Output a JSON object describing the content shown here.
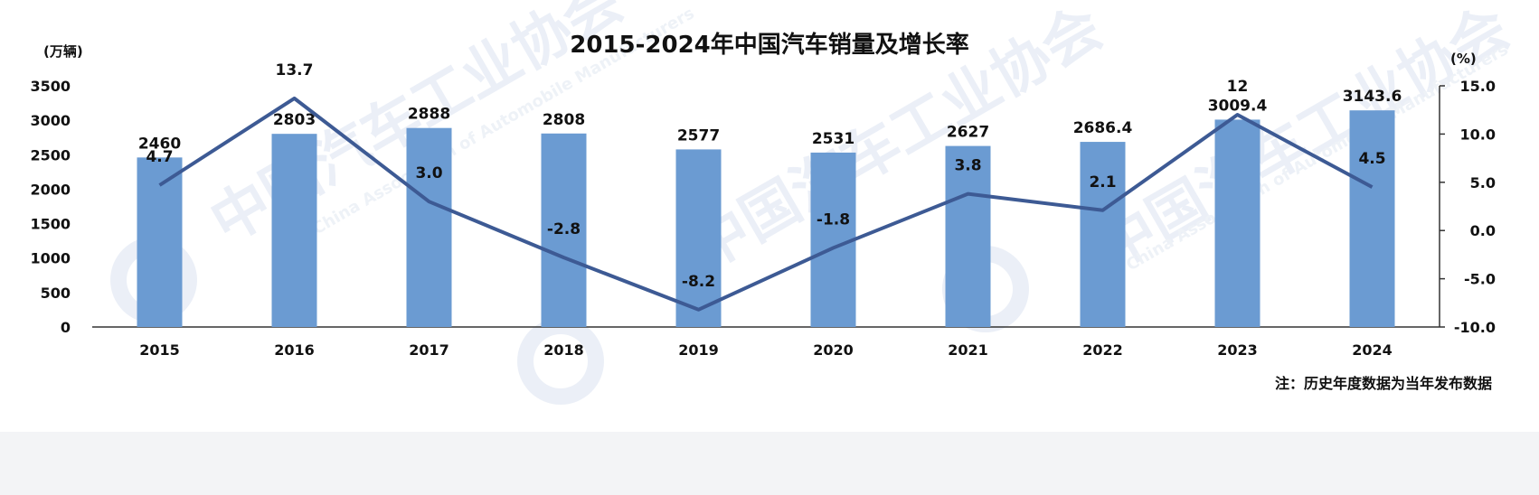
{
  "chart_data": {
    "type": "bar+line",
    "title": "2015-2024年中国汽车销量及增长率",
    "y_left_unit": "(万辆)",
    "y_right_unit": "(%)",
    "categories": [
      "2015",
      "2016",
      "2017",
      "2018",
      "2019",
      "2020",
      "2021",
      "2022",
      "2023",
      "2024"
    ],
    "series": [
      {
        "kind": "bar",
        "values": [
          2460,
          2803,
          2888,
          2808,
          2577,
          2531,
          2627,
          2686.4,
          3009.4,
          3143.6
        ],
        "labels": [
          "2460",
          "2803",
          "2888",
          "2808",
          "2577",
          "2531",
          "2627",
          "2686.4",
          "3009.4",
          "3143.6"
        ]
      },
      {
        "kind": "line",
        "axis": "right",
        "values": [
          4.7,
          13.7,
          3.0,
          -2.8,
          -8.2,
          -1.8,
          3.8,
          2.1,
          12,
          4.5
        ],
        "labels": [
          "4.7",
          "13.7",
          "3.0",
          "-2.8",
          "-8.2",
          "-1.8",
          "3.8",
          "2.1",
          "12",
          "4.5"
        ]
      }
    ],
    "y_left_ticks": [
      "0",
      "500",
      "1000",
      "1500",
      "2000",
      "2500",
      "3000",
      "3500"
    ],
    "y_left_lim": [
      0,
      3500
    ],
    "y_right_ticks": [
      "-10.0",
      "-5.0",
      "0.0",
      "5.0",
      "10.0",
      "15.0"
    ],
    "y_right_lim": [
      -10,
      15
    ],
    "grid": false,
    "legend": "none",
    "colors": {
      "bar": "#6b9bd2",
      "line": "#3d5a94"
    },
    "note": "注：历史年度数据为当年发布数据"
  },
  "watermark": {
    "texts": [
      "中国汽车工业协会",
      "中国汽车工业协会",
      "中国汽车工业协会"
    ],
    "english": [
      "China Association of Automobile Manufacturers",
      "China Association of Automobile Manufacturers"
    ]
  }
}
